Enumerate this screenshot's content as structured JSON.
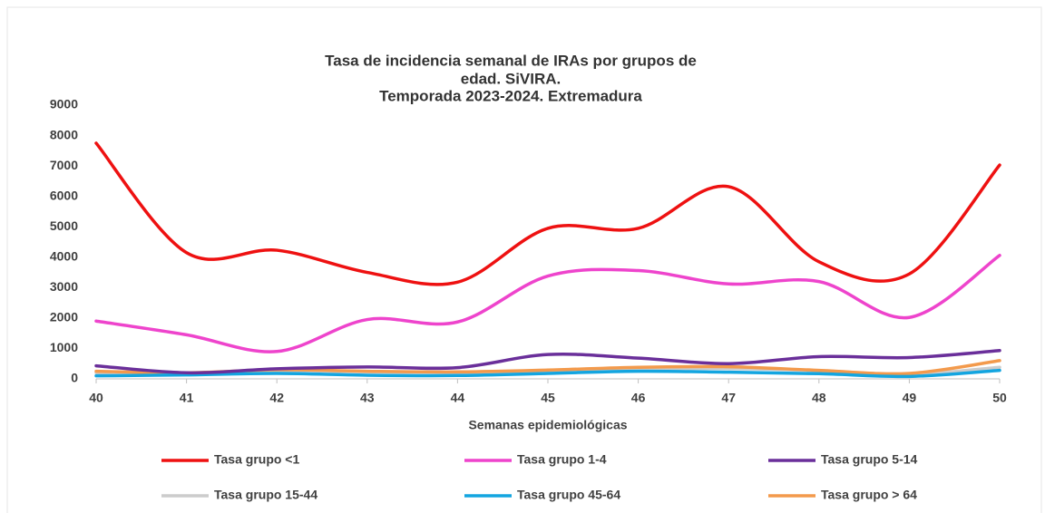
{
  "chart_data": {
    "type": "line",
    "title": [
      "Tasa de incidencia semanal de IRAs por grupos de",
      "edad. SiVIRA.",
      "Temporada 2023-2024. Extremadura"
    ],
    "x_label": "Semanas epidemiológicas",
    "x": [
      40,
      41,
      42,
      43,
      44,
      45,
      46,
      47,
      48,
      49,
      50
    ],
    "xlim": [
      40,
      50
    ],
    "xticks": [
      40,
      41,
      42,
      43,
      44,
      45,
      46,
      47,
      48,
      49,
      50
    ],
    "ylim": [
      0,
      9000
    ],
    "yticks": [
      0,
      1000,
      2000,
      3000,
      4000,
      5000,
      6000,
      7000,
      8000,
      9000
    ],
    "grid": false,
    "legend": "bottom",
    "smooth": true,
    "series": [
      {
        "name": "Tasa grupo <1",
        "color": "#ee1111",
        "values": [
          7750,
          4150,
          4230,
          3500,
          3180,
          4950,
          4950,
          6320,
          3850,
          3450,
          7030
        ]
      },
      {
        "name": "Tasa grupo 1-4",
        "color": "#ee44cc",
        "values": [
          1900,
          1450,
          900,
          1950,
          1870,
          3380,
          3560,
          3120,
          3200,
          2020,
          4060
        ]
      },
      {
        "name": "Tasa grupo 5-14",
        "color": "#6a2f9a",
        "values": [
          430,
          200,
          330,
          390,
          370,
          800,
          680,
          500,
          730,
          700,
          930
        ]
      },
      {
        "name": "Tasa grupo 15-44",
        "color": "#cccccc",
        "values": [
          200,
          190,
          270,
          230,
          210,
          260,
          330,
          340,
          270,
          150,
          380
        ]
      },
      {
        "name": "Tasa grupo 45-64",
        "color": "#13a5e0",
        "values": [
          100,
          130,
          180,
          120,
          110,
          180,
          250,
          220,
          170,
          80,
          280
        ]
      },
      {
        "name": "Tasa grupo > 64",
        "color": "#f39a4c",
        "values": [
          250,
          200,
          300,
          250,
          230,
          290,
          380,
          400,
          280,
          180,
          600
        ]
      }
    ]
  }
}
